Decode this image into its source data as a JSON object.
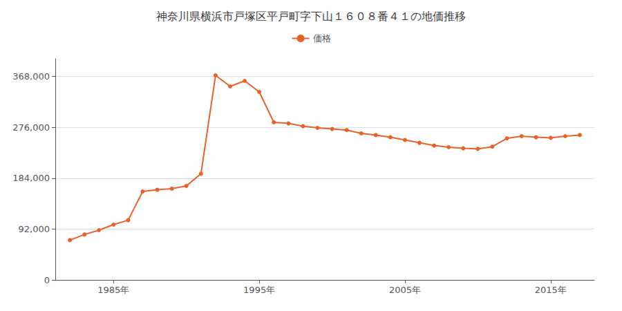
{
  "chart_data": {
    "type": "line",
    "title": "神奈川県横浜市戸塚区平戸町字下山１６０８番４１の地価推移",
    "x": [
      1982,
      1983,
      1984,
      1985,
      1986,
      1987,
      1988,
      1989,
      1990,
      1991,
      1992,
      1993,
      1994,
      1995,
      1996,
      1997,
      1998,
      1999,
      2000,
      2001,
      2002,
      2003,
      2004,
      2005,
      2006,
      2007,
      2008,
      2009,
      2010,
      2011,
      2012,
      2013,
      2014,
      2015,
      2016,
      2017
    ],
    "series": [
      {
        "name": "価格",
        "color": "#e8622a",
        "marker": "circle",
        "values": [
          72000,
          82000,
          90000,
          100000,
          108000,
          160000,
          163000,
          165000,
          170000,
          192000,
          370000,
          350000,
          360000,
          340000,
          285000,
          283000,
          278000,
          275000,
          273000,
          271000,
          265000,
          262000,
          258000,
          253000,
          248000,
          243000,
          240000,
          238000,
          237000,
          241000,
          256000,
          260000,
          258000,
          257000,
          260000,
          262000
        ]
      }
    ],
    "xlim": [
      1981,
      2018
    ],
    "xticks": [
      {
        "value": 1985,
        "label": "1985年"
      },
      {
        "value": 1995,
        "label": "1995年"
      },
      {
        "value": 2005,
        "label": "2005年"
      },
      {
        "value": 2015,
        "label": "2015年"
      }
    ],
    "ylim": [
      0,
      400000
    ],
    "yticks": [
      0,
      {
        "value": 92000,
        "label": "92,000"
      },
      {
        "value": 184000,
        "label": "184,000"
      },
      {
        "value": 276000,
        "label": "276,000"
      },
      {
        "value": 368000,
        "label": "368,000"
      }
    ],
    "grid": "y",
    "legend": "top"
  }
}
